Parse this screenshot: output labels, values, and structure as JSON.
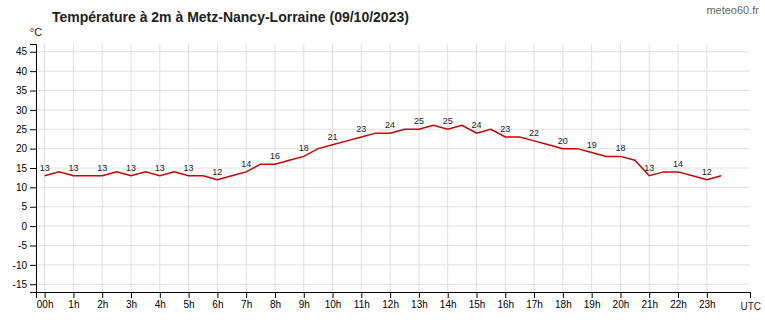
{
  "chart_data": {
    "type": "line",
    "title": "Température à 2m à Metz-Nancy-Lorraine (09/10/2023)",
    "y_label": "°C",
    "x_label": "UTC",
    "annotations": [
      "meteo60.fr"
    ],
    "x": [
      0,
      0.5,
      1,
      1.5,
      2,
      2.5,
      3,
      3.5,
      4,
      4.5,
      5,
      5.5,
      6,
      6.5,
      7,
      7.5,
      8,
      8.5,
      9,
      9.5,
      10,
      10.5,
      11,
      11.5,
      12,
      12.5,
      13,
      13.5,
      14,
      14.5,
      15,
      15.5,
      16,
      16.5,
      17,
      17.5,
      18,
      18.5,
      19,
      19.5,
      20,
      20.5,
      21,
      21.5,
      22,
      22.5,
      23,
      23.5
    ],
    "values": [
      13,
      14,
      13,
      13,
      13,
      14,
      13,
      14,
      13,
      14,
      13,
      13,
      12,
      13,
      14,
      16,
      16,
      17,
      18,
      20,
      21,
      22,
      23,
      24,
      24,
      25,
      25,
      26,
      25,
      26,
      24,
      25,
      23,
      23,
      22,
      21,
      20,
      20,
      19,
      18,
      18,
      17,
      13,
      14,
      14,
      13,
      12,
      13
    ],
    "value_labels": [
      "13",
      null,
      "13",
      null,
      "13",
      null,
      "13",
      null,
      "13",
      null,
      "13",
      null,
      "12",
      null,
      "14",
      null,
      "16",
      null,
      "18",
      null,
      "21",
      null,
      "23",
      null,
      "24",
      null,
      "25",
      null,
      "25",
      null,
      "24",
      null,
      "23",
      null,
      "22",
      null,
      "20",
      null,
      "19",
      null,
      "18",
      null,
      "13",
      null,
      "14",
      null,
      "12",
      null
    ],
    "color": "#cc0000",
    "data_labels": true,
    "grid": true,
    "xlim": [
      -0.3,
      24.5
    ],
    "ylim": [
      -17,
      47
    ],
    "xticks": [
      {
        "value": 0,
        "label": "00h"
      },
      {
        "value": 1,
        "label": "1h"
      },
      {
        "value": 2,
        "label": "2h"
      },
      {
        "value": 3,
        "label": "3h"
      },
      {
        "value": 4,
        "label": "4h"
      },
      {
        "value": 5,
        "label": "5h"
      },
      {
        "value": 6,
        "label": "6h"
      },
      {
        "value": 7,
        "label": "7h"
      },
      {
        "value": 8,
        "label": "8h"
      },
      {
        "value": 9,
        "label": "9h"
      },
      {
        "value": 10,
        "label": "10h"
      },
      {
        "value": 11,
        "label": "11h"
      },
      {
        "value": 12,
        "label": "12h"
      },
      {
        "value": 13,
        "label": "13h"
      },
      {
        "value": 14,
        "label": "14h"
      },
      {
        "value": 15,
        "label": "15h"
      },
      {
        "value": 16,
        "label": "16h"
      },
      {
        "value": 17,
        "label": "17h"
      },
      {
        "value": 18,
        "label": "18h"
      },
      {
        "value": 19,
        "label": "19h"
      },
      {
        "value": 20,
        "label": "20h"
      },
      {
        "value": 21,
        "label": "21h"
      },
      {
        "value": 22,
        "label": "22h"
      },
      {
        "value": 23,
        "label": "23h"
      }
    ],
    "yticks": [
      -15,
      -10,
      -5,
      0,
      5,
      10,
      15,
      20,
      25,
      30,
      35,
      40,
      45
    ]
  }
}
